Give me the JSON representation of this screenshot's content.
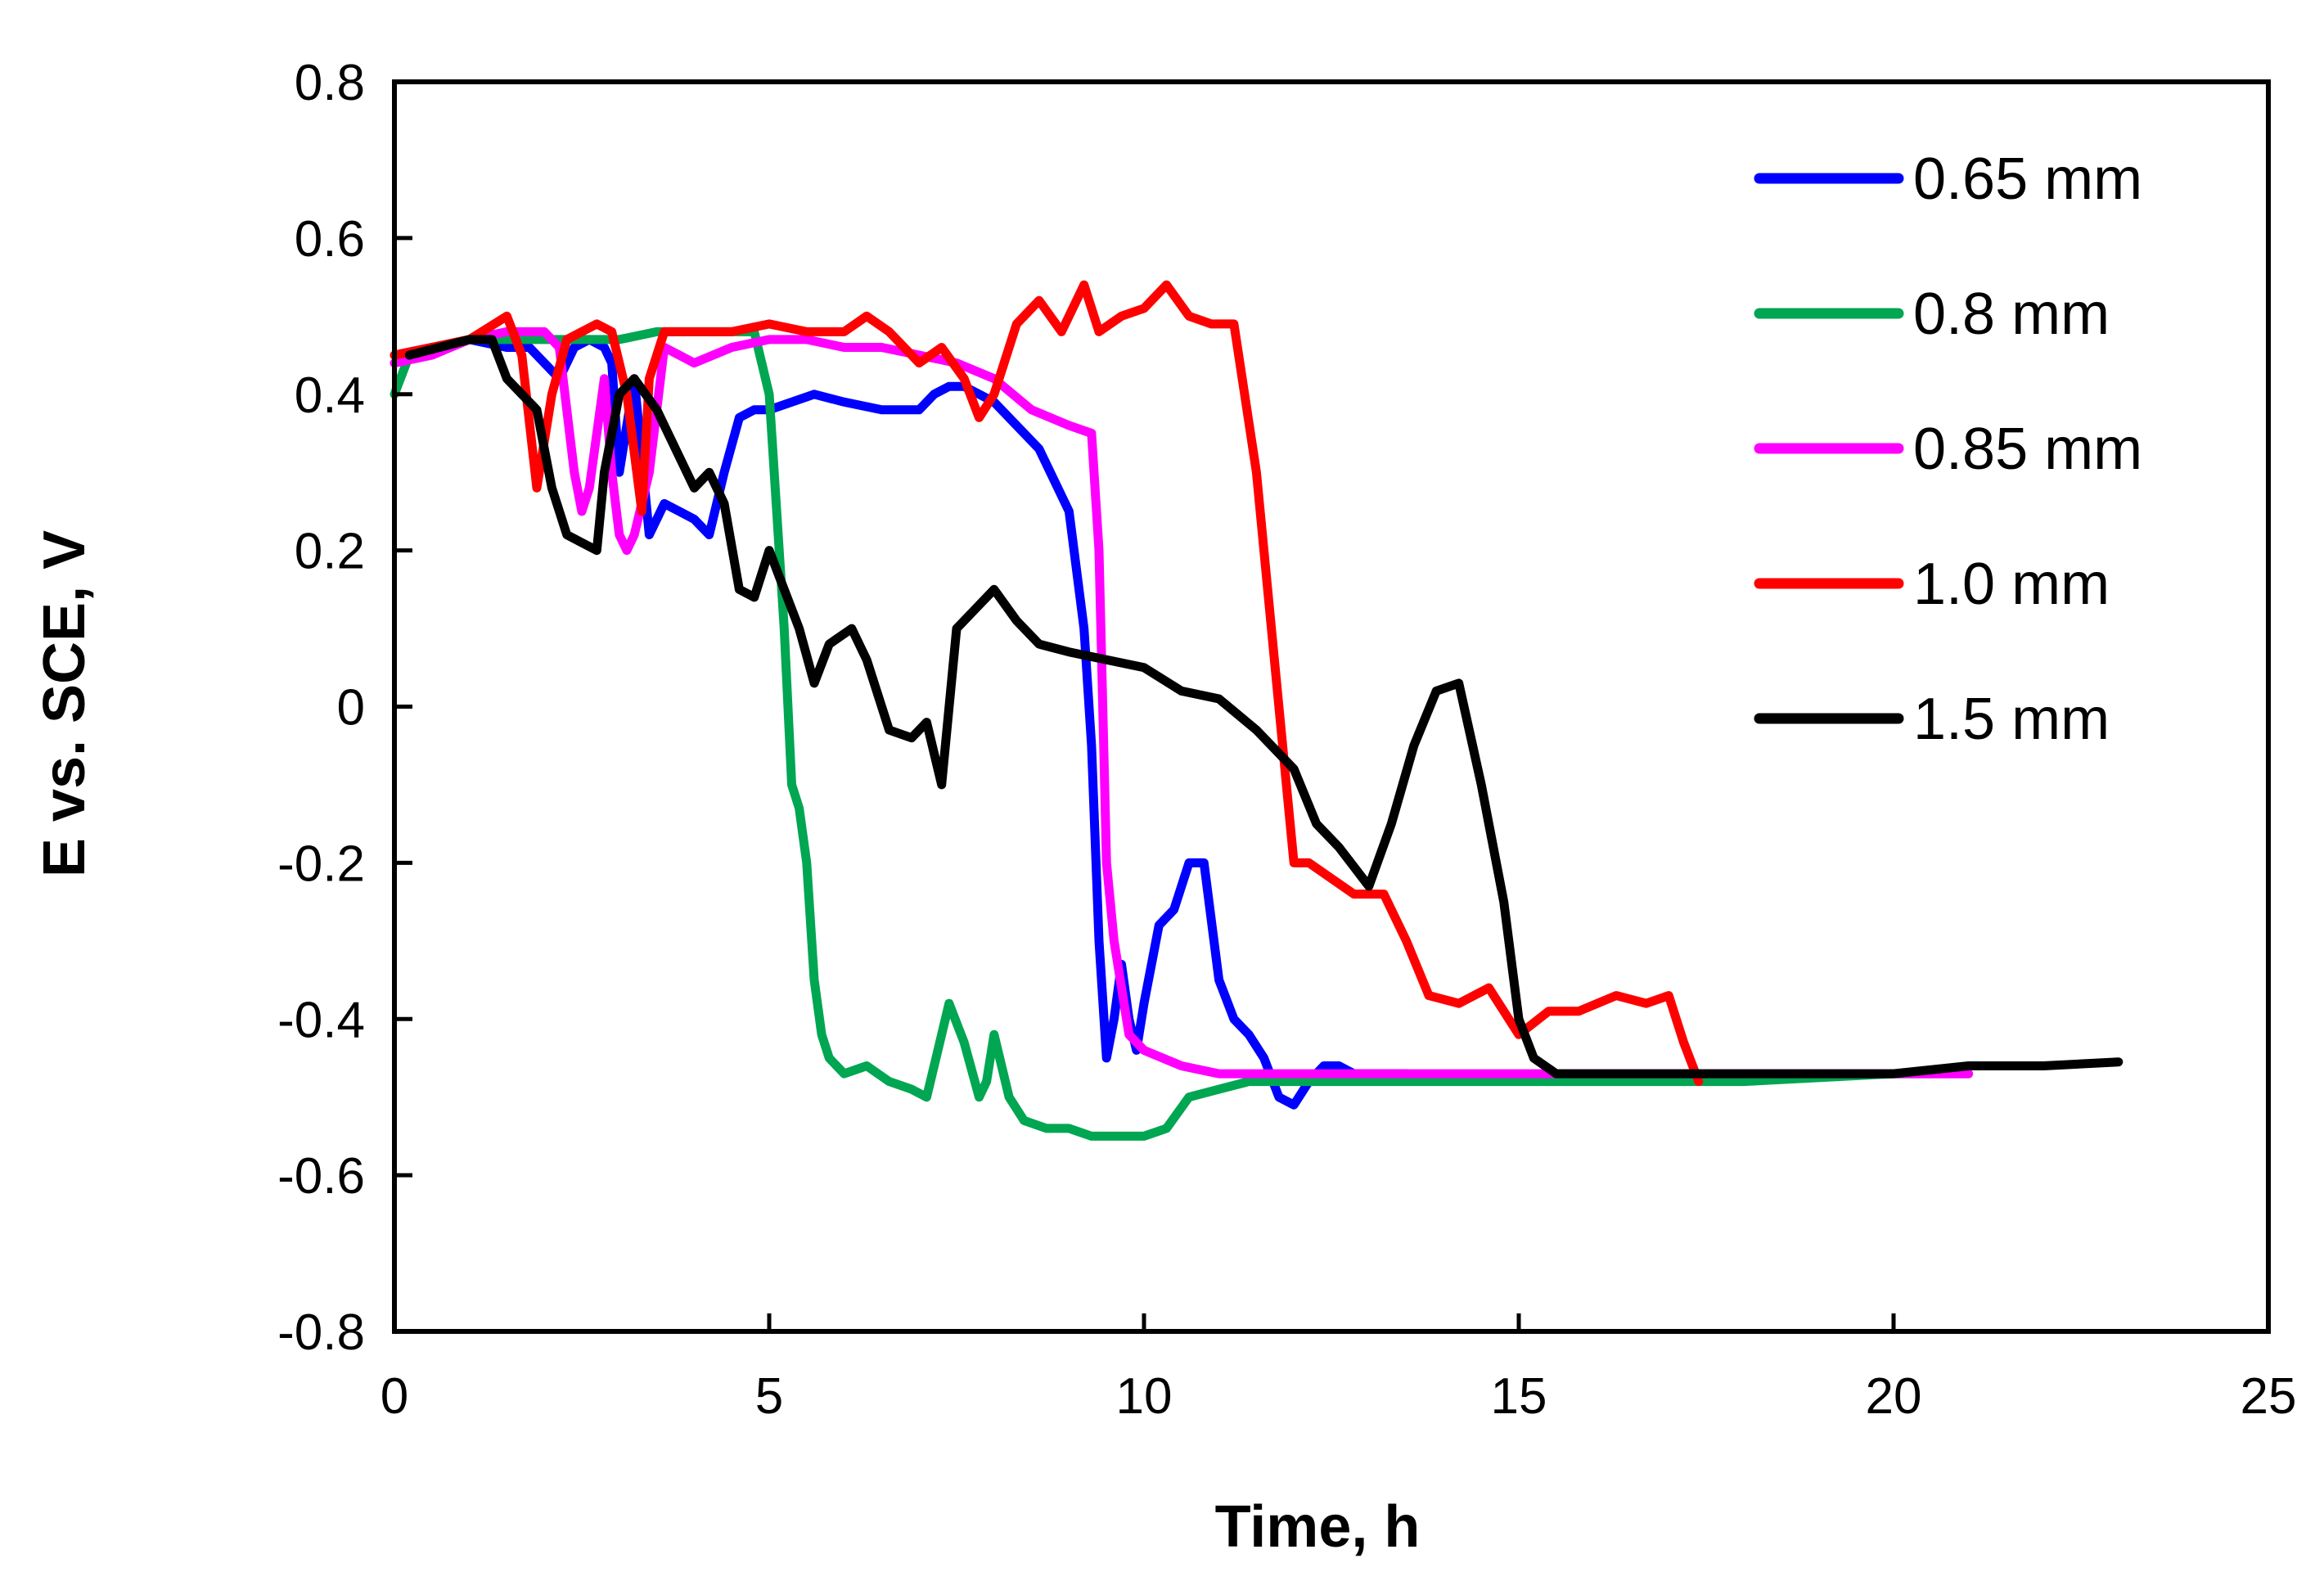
{
  "chart_data": {
    "type": "line",
    "title": "",
    "xlabel": "Time, h",
    "ylabel": "E vs. SCE, V",
    "xlim": [
      0,
      25
    ],
    "ylim": [
      -0.8,
      0.8
    ],
    "xticks": [
      0,
      5,
      10,
      15,
      20,
      25
    ],
    "yticks": [
      0.8,
      0.6,
      0.4,
      0.2,
      0,
      -0.2,
      -0.4,
      -0.6,
      -0.8
    ],
    "xtick_labels": [
      "0",
      "5",
      "10",
      "15",
      "20",
      "25"
    ],
    "ytick_labels": [
      "0.8",
      "0.6",
      "0.4",
      "0.2",
      "0",
      "-0.2",
      "-0.4",
      "-0.6",
      "-0.8"
    ],
    "grid": false,
    "legend_position": "top-right",
    "series": [
      {
        "name": "0.65 mm",
        "color": "#0000ff",
        "x": [
          0,
          0.5,
          1.0,
          1.5,
          1.8,
          2.0,
          2.2,
          2.4,
          2.6,
          2.8,
          2.9,
          3.0,
          3.2,
          3.4,
          3.6,
          3.8,
          4.0,
          4.2,
          4.4,
          4.6,
          4.8,
          5.0,
          5.3,
          5.6,
          6.0,
          6.5,
          7.0,
          7.2,
          7.4,
          7.6,
          7.8,
          8.0,
          8.3,
          8.6,
          9.0,
          9.2,
          9.3,
          9.4,
          9.5,
          9.6,
          9.7,
          9.8,
          9.9,
          10.0,
          10.2,
          10.4,
          10.6,
          10.8,
          11.0,
          11.2,
          11.4,
          11.6,
          11.8,
          12.0,
          12.2,
          12.4,
          12.6,
          12.8,
          13.0,
          13.5
        ],
        "y": [
          0.45,
          0.46,
          0.47,
          0.46,
          0.46,
          0.44,
          0.42,
          0.46,
          0.47,
          0.46,
          0.44,
          0.3,
          0.42,
          0.22,
          0.26,
          0.25,
          0.24,
          0.22,
          0.3,
          0.37,
          0.38,
          0.38,
          0.39,
          0.4,
          0.39,
          0.38,
          0.38,
          0.4,
          0.41,
          0.41,
          0.4,
          0.39,
          0.36,
          0.33,
          0.25,
          0.1,
          -0.05,
          -0.3,
          -0.45,
          -0.4,
          -0.33,
          -0.4,
          -0.44,
          -0.38,
          -0.28,
          -0.26,
          -0.2,
          -0.2,
          -0.35,
          -0.4,
          -0.42,
          -0.45,
          -0.5,
          -0.51,
          -0.48,
          -0.46,
          -0.46,
          -0.47,
          -0.47,
          -0.47
        ]
      },
      {
        "name": "0.8 mm",
        "color": "#00a651",
        "x": [
          0,
          0.2,
          0.5,
          1.0,
          1.5,
          2.0,
          2.5,
          3.0,
          3.5,
          4.0,
          4.5,
          4.8,
          5.0,
          5.2,
          5.3,
          5.4,
          5.5,
          5.6,
          5.7,
          5.8,
          6.0,
          6.3,
          6.6,
          6.9,
          7.1,
          7.3,
          7.4,
          7.6,
          7.8,
          7.9,
          8.0,
          8.2,
          8.4,
          8.7,
          9.0,
          9.3,
          9.6,
          10.0,
          10.3,
          10.6,
          11.0,
          11.4,
          12.0,
          13.0,
          14.0,
          16.0,
          18.0,
          20.0,
          21.0
        ],
        "y": [
          0.4,
          0.45,
          0.46,
          0.47,
          0.47,
          0.47,
          0.47,
          0.47,
          0.48,
          0.48,
          0.48,
          0.48,
          0.4,
          0.1,
          -0.1,
          -0.13,
          -0.2,
          -0.35,
          -0.42,
          -0.45,
          -0.47,
          -0.46,
          -0.48,
          -0.49,
          -0.5,
          -0.42,
          -0.38,
          -0.43,
          -0.5,
          -0.48,
          -0.42,
          -0.5,
          -0.53,
          -0.54,
          -0.54,
          -0.55,
          -0.55,
          -0.55,
          -0.54,
          -0.5,
          -0.49,
          -0.48,
          -0.48,
          -0.48,
          -0.48,
          -0.48,
          -0.48,
          -0.47,
          -0.47
        ]
      },
      {
        "name": "0.85 mm",
        "color": "#ff00ff",
        "x": [
          0,
          0.5,
          1.0,
          1.5,
          2.0,
          2.2,
          2.4,
          2.5,
          2.6,
          2.8,
          2.9,
          3.0,
          3.1,
          3.2,
          3.4,
          3.6,
          3.8,
          4.0,
          4.5,
          5.0,
          5.5,
          6.0,
          6.5,
          7.0,
          7.5,
          8.0,
          8.5,
          9.0,
          9.3,
          9.4,
          9.5,
          9.6,
          9.8,
          10.0,
          10.5,
          11.0,
          12.0,
          13.0,
          14.0,
          16.0,
          18.0,
          20.0,
          21.0
        ],
        "y": [
          0.44,
          0.45,
          0.47,
          0.48,
          0.48,
          0.46,
          0.3,
          0.25,
          0.28,
          0.42,
          0.3,
          0.22,
          0.2,
          0.22,
          0.3,
          0.46,
          0.45,
          0.44,
          0.46,
          0.47,
          0.47,
          0.46,
          0.46,
          0.45,
          0.44,
          0.42,
          0.38,
          0.36,
          0.35,
          0.2,
          -0.2,
          -0.3,
          -0.42,
          -0.44,
          -0.46,
          -0.47,
          -0.47,
          -0.47,
          -0.47,
          -0.47,
          -0.47,
          -0.47,
          -0.47
        ]
      },
      {
        "name": "1.0 mm",
        "color": "#ff0000",
        "x": [
          0,
          0.5,
          1.0,
          1.5,
          1.7,
          1.9,
          2.1,
          2.3,
          2.5,
          2.7,
          2.9,
          3.1,
          3.3,
          3.4,
          3.6,
          3.8,
          4.0,
          4.5,
          5.0,
          5.5,
          6.0,
          6.3,
          6.6,
          7.0,
          7.3,
          7.6,
          7.8,
          8.0,
          8.3,
          8.6,
          8.9,
          9.2,
          9.4,
          9.7,
          10.0,
          10.3,
          10.6,
          10.9,
          11.2,
          11.5,
          11.7,
          11.9,
          12.0,
          12.2,
          12.5,
          12.8,
          13.2,
          13.5,
          13.8,
          14.2,
          14.6,
          15.0,
          15.4,
          15.8,
          16.3,
          16.7,
          17.0,
          17.2,
          17.4
        ],
        "y": [
          0.45,
          0.46,
          0.47,
          0.5,
          0.45,
          0.28,
          0.4,
          0.47,
          0.48,
          0.49,
          0.48,
          0.4,
          0.25,
          0.42,
          0.48,
          0.48,
          0.48,
          0.48,
          0.49,
          0.48,
          0.48,
          0.5,
          0.48,
          0.44,
          0.46,
          0.42,
          0.37,
          0.4,
          0.49,
          0.52,
          0.48,
          0.54,
          0.48,
          0.5,
          0.51,
          0.54,
          0.5,
          0.49,
          0.49,
          0.3,
          0.1,
          -0.1,
          -0.2,
          -0.2,
          -0.22,
          -0.24,
          -0.24,
          -0.3,
          -0.37,
          -0.38,
          -0.36,
          -0.42,
          -0.39,
          -0.39,
          -0.37,
          -0.38,
          -0.37,
          -0.43,
          -0.48
        ]
      },
      {
        "name": "1.5 mm",
        "color": "#000000",
        "x": [
          0.2,
          0.6,
          1.0,
          1.3,
          1.5,
          1.7,
          1.9,
          2.1,
          2.3,
          2.5,
          2.7,
          2.8,
          3.0,
          3.2,
          3.5,
          3.8,
          4.0,
          4.2,
          4.4,
          4.6,
          4.8,
          5.0,
          5.2,
          5.4,
          5.6,
          5.8,
          6.1,
          6.3,
          6.6,
          6.9,
          7.1,
          7.3,
          7.5,
          7.7,
          8.0,
          8.3,
          8.6,
          9.0,
          9.5,
          10.0,
          10.5,
          11.0,
          11.5,
          12.0,
          12.3,
          12.6,
          13.0,
          13.3,
          13.6,
          13.9,
          14.2,
          14.5,
          14.8,
          15.0,
          15.2,
          15.5,
          16.0,
          17.0,
          18.0,
          19.0,
          20.0,
          21.0,
          22.0,
          23.0
        ],
        "y": [
          0.45,
          0.46,
          0.47,
          0.47,
          0.42,
          0.4,
          0.38,
          0.28,
          0.22,
          0.21,
          0.2,
          0.3,
          0.4,
          0.42,
          0.38,
          0.32,
          0.28,
          0.3,
          0.26,
          0.15,
          0.14,
          0.2,
          0.15,
          0.1,
          0.03,
          0.08,
          0.1,
          0.06,
          -0.03,
          -0.04,
          -0.02,
          -0.1,
          0.1,
          0.12,
          0.15,
          0.11,
          0.08,
          0.07,
          0.06,
          0.05,
          0.02,
          0.01,
          -0.03,
          -0.08,
          -0.15,
          -0.18,
          -0.23,
          -0.15,
          -0.05,
          0.02,
          0.03,
          -0.1,
          -0.25,
          -0.4,
          -0.45,
          -0.47,
          -0.47,
          -0.47,
          -0.47,
          -0.47,
          -0.47,
          -0.46,
          -0.46,
          -0.455
        ]
      }
    ]
  }
}
